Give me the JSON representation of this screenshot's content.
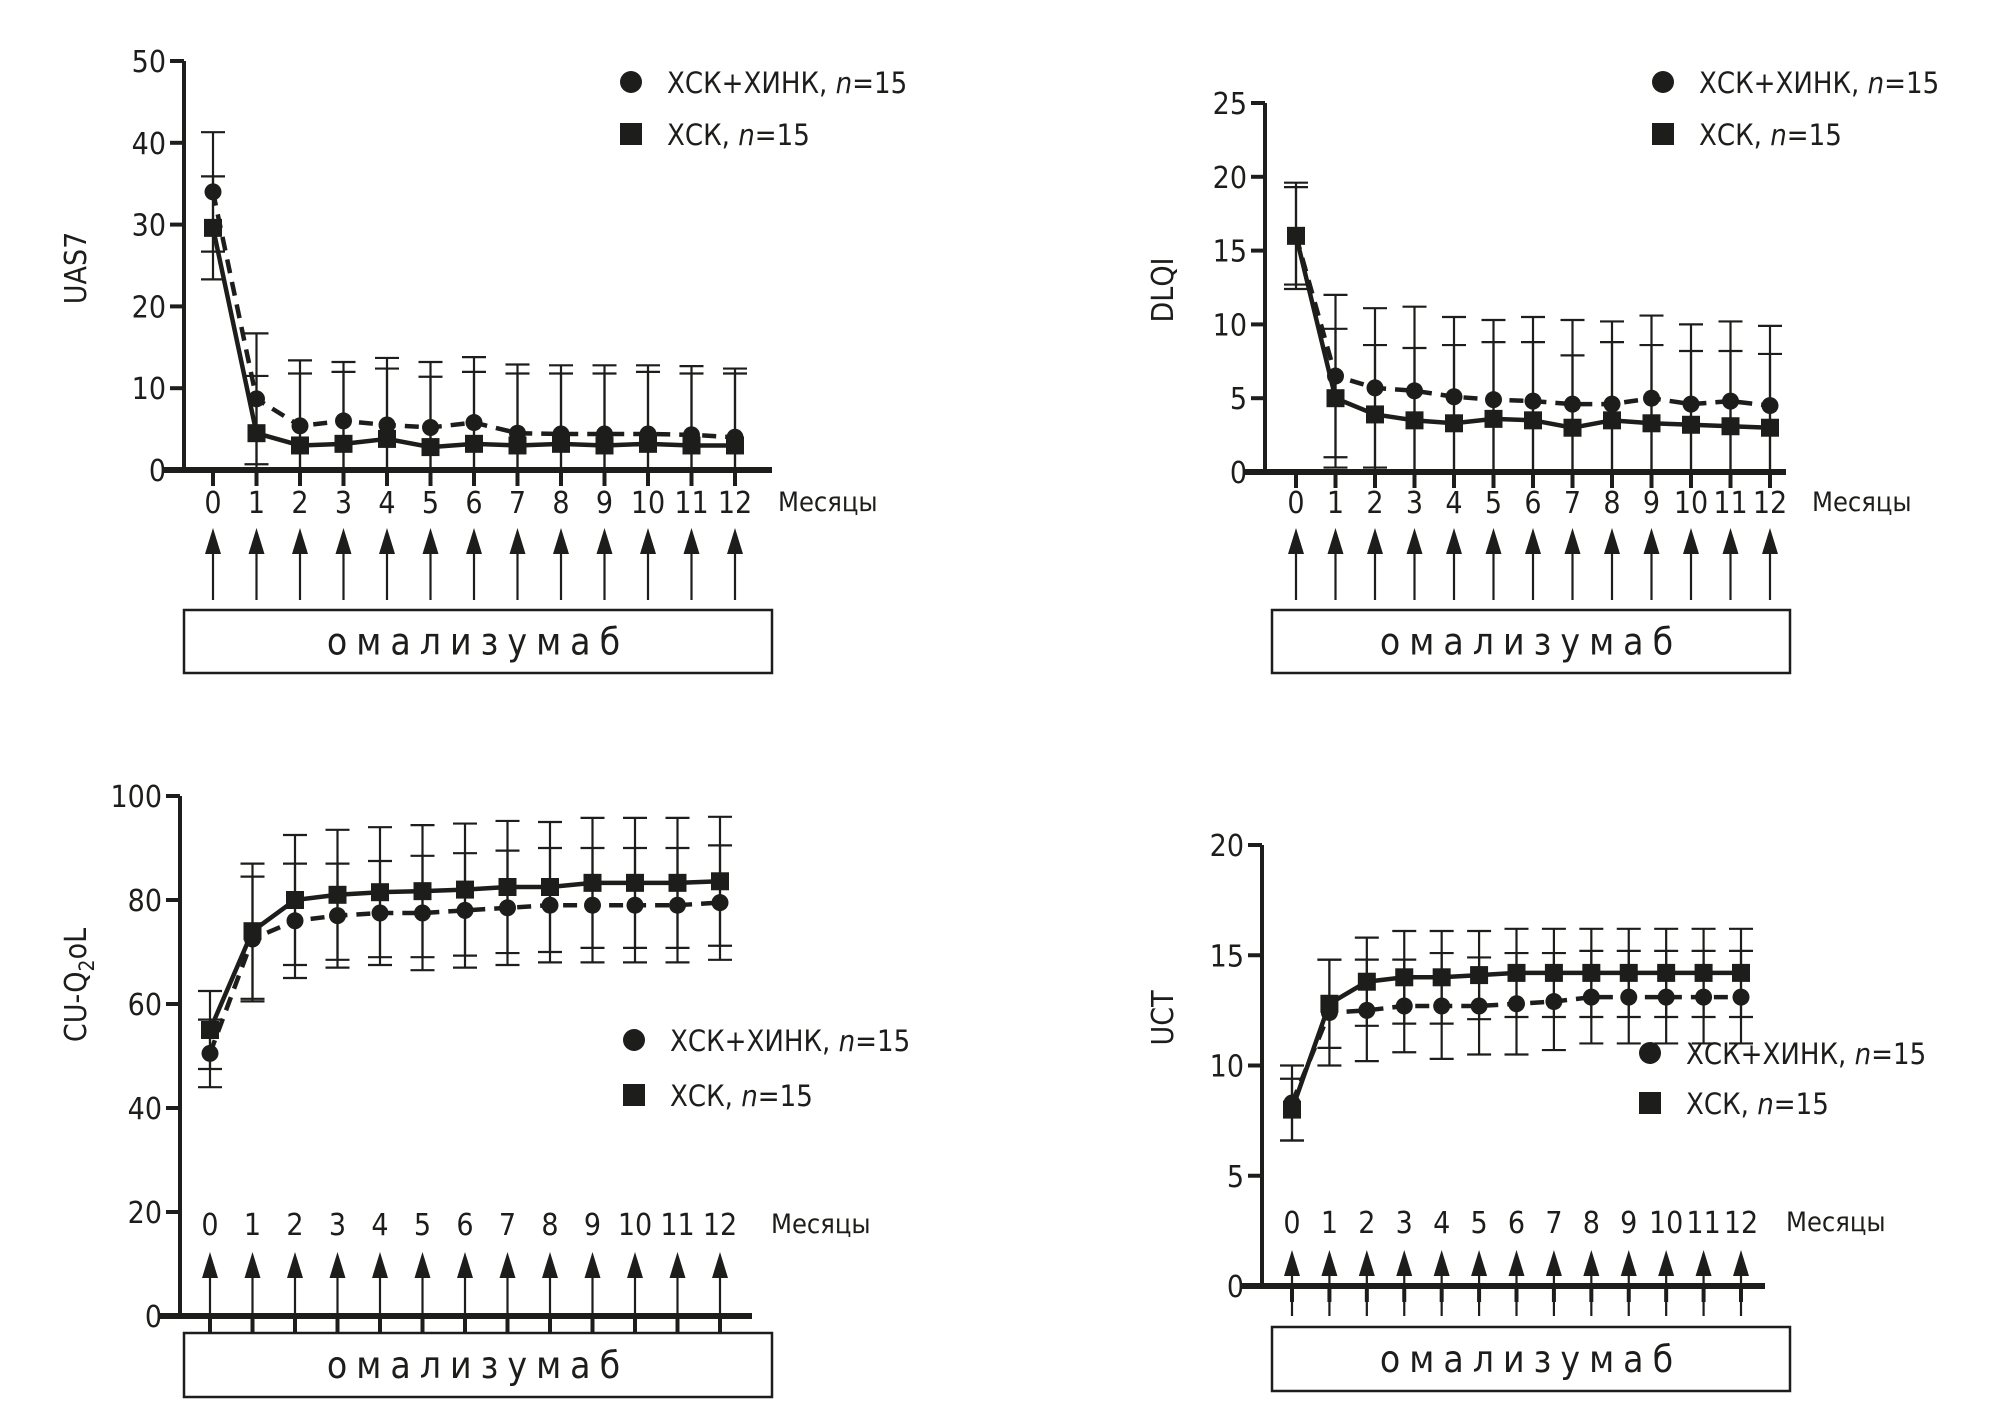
{
  "figure": {
    "drug_label": "омализумаб",
    "months_label": "Месяцы",
    "legend": [
      {
        "name": "ХСК+ХИНК, ",
        "n_label": "n",
        "n_value": "=15",
        "marker": "circle-marker-icon",
        "line": "dashed"
      },
      {
        "name": "ХСК, ",
        "n_label": "n",
        "n_value": "=15",
        "marker": "square-marker-icon",
        "line": "solid"
      }
    ],
    "colors": {
      "ink": "#1d1d1b",
      "background": "#ffffff"
    }
  },
  "chart_data": [
    {
      "id": "uas7",
      "type": "line",
      "title": "",
      "ylabel": "UAS7",
      "ylabel_sub": "",
      "ylabel_tail": "",
      "xlabel": "Месяцы",
      "x": [
        0,
        1,
        2,
        3,
        4,
        5,
        6,
        7,
        8,
        9,
        10,
        11,
        12
      ],
      "xtick_labels": [
        "0",
        "1",
        "2",
        "3",
        "4",
        "5",
        "6",
        "7",
        "8",
        "9",
        "10",
        "11",
        "12"
      ],
      "ylim": [
        0,
        50
      ],
      "yticks": [
        0,
        10,
        20,
        30,
        40,
        50
      ],
      "ytick_labels": [
        "0",
        "10",
        "20",
        "30",
        "40",
        "50"
      ],
      "legend_position": "top-right",
      "series": [
        {
          "name": "ХСК+ХИНК, n=15",
          "marker": "circle",
          "line": "dashed",
          "values": [
            34.0,
            8.7,
            5.4,
            6.0,
            5.5,
            5.2,
            5.8,
            4.5,
            4.4,
            4.4,
            4.4,
            4.3,
            4.0
          ],
          "error": [
            7.3,
            8.0,
            8.0,
            7.2,
            8.2,
            8.0,
            8.0,
            8.4,
            8.4,
            8.4,
            8.4,
            8.4,
            8.4
          ]
        },
        {
          "name": "ХСК, n=15",
          "marker": "square",
          "line": "solid",
          "values": [
            29.6,
            4.5,
            3.0,
            3.2,
            3.8,
            2.8,
            3.2,
            3.0,
            3.2,
            3.0,
            3.2,
            3.0,
            3.0
          ],
          "error": [
            6.3,
            7.0,
            8.8,
            8.8,
            8.6,
            8.6,
            8.8,
            8.8,
            8.6,
            8.8,
            8.8,
            8.8,
            8.8
          ]
        }
      ]
    },
    {
      "id": "dlqi",
      "type": "line",
      "title": "",
      "ylabel": "DLQI",
      "ylabel_sub": "",
      "ylabel_tail": "",
      "xlabel": "Месяцы",
      "x": [
        0,
        1,
        2,
        3,
        4,
        5,
        6,
        7,
        8,
        9,
        10,
        11,
        12
      ],
      "xtick_labels": [
        "0",
        "1",
        "2",
        "3",
        "4",
        "5",
        "6",
        "7",
        "8",
        "9",
        "10",
        "11",
        "12"
      ],
      "ylim": [
        0,
        25
      ],
      "yticks": [
        0,
        5,
        10,
        15,
        20,
        25
      ],
      "ytick_labels": [
        "0",
        "5",
        "10",
        "15",
        "20",
        "25"
      ],
      "legend_position": "top-right",
      "series": [
        {
          "name": "ХСК+ХИНК, n=15",
          "marker": "circle",
          "line": "dashed",
          "values": [
            16.0,
            6.5,
            5.7,
            5.5,
            5.1,
            4.9,
            4.8,
            4.6,
            4.6,
            5.0,
            4.6,
            4.8,
            4.5
          ],
          "error": [
            3.6,
            5.5,
            5.4,
            5.7,
            5.4,
            5.4,
            5.7,
            5.7,
            5.6,
            5.6,
            5.4,
            5.4,
            5.4
          ]
        },
        {
          "name": "ХСК, n=15",
          "marker": "square",
          "line": "solid",
          "values": [
            16.0,
            5.0,
            3.9,
            3.5,
            3.3,
            3.6,
            3.5,
            3.0,
            3.5,
            3.3,
            3.2,
            3.1,
            3.0
          ],
          "error": [
            3.3,
            4.7,
            4.7,
            4.9,
            5.3,
            5.2,
            5.3,
            4.9,
            5.3,
            5.3,
            5.0,
            5.1,
            5.0
          ]
        }
      ]
    },
    {
      "id": "cuq2ol",
      "type": "line",
      "title": "",
      "ylabel": "CU-Q",
      "ylabel_sub": "2",
      "ylabel_tail": "oL",
      "xlabel": "Месяцы",
      "x": [
        0,
        1,
        2,
        3,
        4,
        5,
        6,
        7,
        8,
        9,
        10,
        11,
        12
      ],
      "xtick_labels": [
        "0",
        "1",
        "2",
        "3",
        "4",
        "5",
        "6",
        "7",
        "8",
        "9",
        "10",
        "11",
        "12"
      ],
      "ylim": [
        0,
        100
      ],
      "yticks": [
        0,
        20,
        40,
        60,
        80,
        100
      ],
      "ytick_labels": [
        "0",
        "20",
        "40",
        "60",
        "80",
        "100"
      ],
      "legend_position": "center-right",
      "series": [
        {
          "name": "ХСК+ХИНК, n=15",
          "marker": "circle",
          "line": "dashed",
          "values": [
            50.5,
            72.5,
            76.0,
            77.0,
            77.5,
            77.5,
            78.0,
            78.5,
            79.0,
            79.0,
            79.0,
            79.0,
            79.5
          ],
          "error": [
            6.5,
            12.0,
            11.0,
            10.0,
            10.0,
            11.0,
            11.0,
            11.0,
            11.0,
            11.0,
            11.0,
            11.0,
            11.0
          ]
        },
        {
          "name": "ХСК, n=15",
          "marker": "square",
          "line": "solid",
          "values": [
            55.0,
            74.0,
            80.0,
            81.0,
            81.5,
            81.7,
            82.0,
            82.5,
            82.5,
            83.3,
            83.3,
            83.3,
            83.6
          ],
          "error": [
            7.5,
            13.0,
            12.5,
            12.5,
            12.5,
            12.7,
            12.7,
            12.7,
            12.5,
            12.5,
            12.5,
            12.5,
            12.4
          ]
        }
      ]
    },
    {
      "id": "uct",
      "type": "line",
      "title": "",
      "ylabel": "UCT",
      "ylabel_sub": "",
      "ylabel_tail": "",
      "xlabel": "Месяцы",
      "x": [
        0,
        1,
        2,
        3,
        4,
        5,
        6,
        7,
        8,
        9,
        10,
        11,
        12
      ],
      "xtick_labels": [
        "0",
        "1",
        "2",
        "3",
        "4",
        "5",
        "6",
        "7",
        "8",
        "9",
        "10",
        "11",
        "12"
      ],
      "ylim": [
        0,
        20
      ],
      "yticks": [
        0,
        5,
        10,
        15,
        20
      ],
      "ytick_labels": [
        "0",
        "5",
        "10",
        "15",
        "20"
      ],
      "legend_position": "center-right",
      "series": [
        {
          "name": "ХСК+ХИНК, n=15",
          "marker": "circle",
          "line": "dashed",
          "values": [
            8.3,
            12.4,
            12.5,
            12.7,
            12.7,
            12.7,
            12.8,
            12.9,
            13.1,
            13.1,
            13.1,
            13.1,
            13.1
          ],
          "error": [
            1.7,
            2.4,
            2.3,
            2.1,
            2.4,
            2.2,
            2.3,
            2.2,
            2.1,
            2.1,
            2.1,
            2.1,
            2.1
          ]
        },
        {
          "name": "ХСК, n=15",
          "marker": "square",
          "line": "solid",
          "values": [
            8.0,
            12.8,
            13.8,
            14.0,
            14.0,
            14.1,
            14.2,
            14.2,
            14.2,
            14.2,
            14.2,
            14.2,
            14.2
          ],
          "error": [
            1.4,
            2.0,
            2.0,
            2.1,
            2.1,
            2.0,
            2.0,
            2.0,
            2.0,
            2.0,
            2.0,
            2.0,
            2.0
          ]
        }
      ]
    }
  ]
}
